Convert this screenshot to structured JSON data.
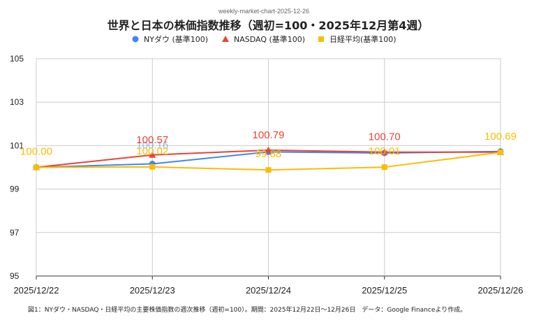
{
  "chart_data": {
    "type": "line",
    "source_label": "weekly-market-chart-2025-12-26",
    "title": "世界と日本の株価指数推移（週初=100・2025年12月第4週）",
    "categories": [
      "2025/12/22",
      "2025/12/23",
      "2025/12/24",
      "2025/12/25",
      "2025/12/26"
    ],
    "ylim": [
      95,
      105
    ],
    "yticks": [
      95,
      97,
      99,
      101,
      103,
      105
    ],
    "grid": true,
    "legend_position": "top-center",
    "series": [
      {
        "name": "NYダウ (基準100)",
        "color": "#4285f4",
        "marker": "circle",
        "values": [
          100.0,
          100.16,
          100.71,
          100.66,
          100.73
        ],
        "labels": [
          "",
          "100.16",
          "",
          "",
          ""
        ]
      },
      {
        "name": "NASDAQ (基準100)",
        "color": "#ea4335",
        "marker": "triangle",
        "values": [
          100.0,
          100.57,
          100.79,
          100.7,
          100.7
        ],
        "labels": [
          "",
          "100.57",
          "100.79",
          "100.70",
          ""
        ]
      },
      {
        "name": "日経平均(基準100)",
        "color": "#fbbc04",
        "marker": "square",
        "values": [
          100.0,
          100.02,
          99.88,
          100.01,
          100.69
        ],
        "labels": [
          "100.00",
          "100.02",
          "99.88",
          "100.01",
          "100.69"
        ]
      }
    ],
    "caption": "図1：NYダウ・NASDAQ・日経平均の主要株価指数の週次推移（週初=100）。期間：2025年12月22日〜12月26日　データ：Google Financeより作成。"
  }
}
